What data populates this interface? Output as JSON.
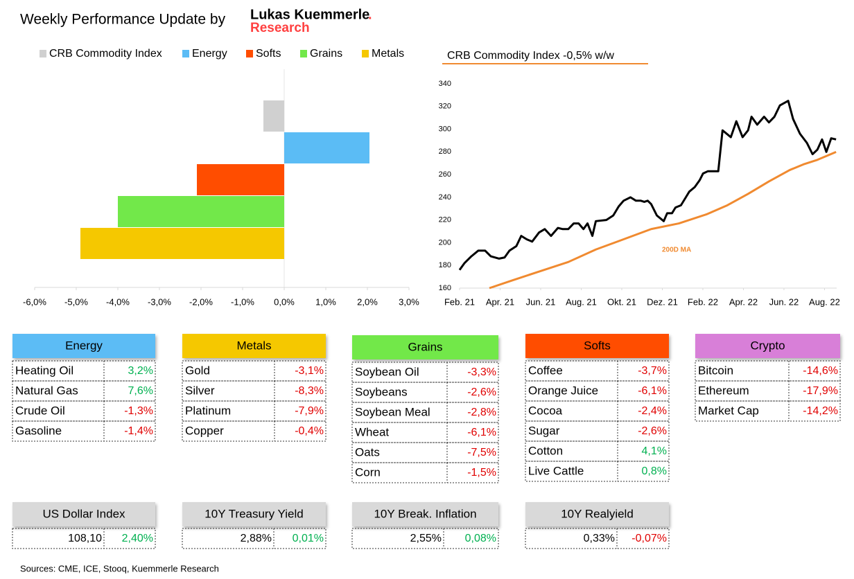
{
  "header": {
    "title": "Weekly Performance Update by",
    "brand": "Lukas Kuemmerle",
    "brand_dot": ".",
    "brand_sub": "Research"
  },
  "chart_data": [
    {
      "type": "hbar",
      "categories": [
        "CRB Commodity Index",
        "Energy",
        "Softs",
        "Grains",
        "Metals"
      ],
      "values": [
        -0.5,
        2.05,
        -2.1,
        -4.0,
        -4.9
      ],
      "colors": [
        "#d0d0d0",
        "#5bbcf5",
        "#ff4d00",
        "#72e84a",
        "#f5c800"
      ],
      "xlim": [
        -6,
        3
      ],
      "xticks": [
        {
          "value": -6,
          "label": "-6,0%"
        },
        {
          "value": -5,
          "label": "-5,0%"
        },
        {
          "value": -4,
          "label": "-4,0%"
        },
        {
          "value": -3,
          "label": "-3,0%"
        },
        {
          "value": -2,
          "label": "-2,0%"
        },
        {
          "value": -1,
          "label": "-1,0%"
        },
        {
          "value": 0,
          "label": "0,0%"
        },
        {
          "value": 1,
          "label": "1,0%"
        },
        {
          "value": 2,
          "label": "2,0%"
        },
        {
          "value": 3,
          "label": "3,0%"
        }
      ],
      "legend": "top"
    },
    {
      "type": "line",
      "title": "CRB Commodity Index -0,5% w/w",
      "series": [
        {
          "color": "#000000",
          "x": [
            0,
            0.24,
            0.58,
            0.92,
            1.26,
            1.54,
            1.95,
            2.22,
            2.46,
            2.8,
            3.04,
            3.31,
            3.58,
            3.92,
            4.2,
            4.51,
            4.85,
            5.09,
            5.36,
            5.63,
            5.87,
            6.11,
            6.31,
            6.55,
            6.72,
            7.24,
            7.58,
            7.85,
            8.09,
            8.43,
            8.7,
            8.94,
            9.11,
            9.28,
            9.45,
            9.73,
            10.07,
            10.24,
            10.48,
            10.65,
            10.92,
            11.16,
            11.33,
            11.6,
            11.84,
            12.01,
            12.25,
            12.76,
            12.97,
            13.38,
            13.65,
            13.96,
            14.23,
            14.4,
            14.68,
            15.02,
            15.26,
            15.53,
            15.8,
            16.21,
            16.45,
            16.79,
            17.13,
            17.41,
            17.65,
            17.88,
            18.09,
            18.33,
            18.57
          ],
          "values": [
            176,
            182,
            188,
            193,
            193,
            188,
            186,
            187,
            193,
            197,
            206,
            203,
            201,
            209,
            212,
            206,
            213,
            212,
            212,
            217,
            217,
            212,
            217,
            206,
            219,
            220,
            224,
            232,
            237,
            240,
            237,
            237,
            236,
            237,
            234,
            224,
            219,
            226,
            226,
            231,
            233,
            240,
            245,
            249,
            255,
            261,
            263,
            263,
            299,
            293,
            307,
            293,
            299,
            311,
            304,
            311,
            306,
            311,
            321,
            325,
            309,
            296,
            288,
            278,
            282,
            291,
            280,
            292,
            291
          ]
        },
        {
          "name": "200D MA",
          "color": "#f08a30",
          "x": [
            1.47,
            2.63,
            3.99,
            5.36,
            6.72,
            8.09,
            9.45,
            10.82,
            12.18,
            13.21,
            14.23,
            15.26,
            16.28,
            16.96,
            17.65,
            18.57
          ],
          "values": [
            160,
            167,
            175,
            183,
            194,
            203,
            212,
            217,
            225,
            233,
            243,
            254,
            264,
            269,
            273,
            280
          ]
        }
      ],
      "xlim": [
        0,
        18.6
      ],
      "xticks": [
        {
          "value": 0,
          "label": "Feb. 21"
        },
        {
          "value": 2,
          "label": "Apr. 21"
        },
        {
          "value": 4,
          "label": "Jun. 21"
        },
        {
          "value": 6,
          "label": "Aug. 21"
        },
        {
          "value": 8,
          "label": "Okt. 21"
        },
        {
          "value": 10,
          "label": "Dez. 21"
        },
        {
          "value": 12,
          "label": "Feb. 22"
        },
        {
          "value": 14,
          "label": "Apr. 22"
        },
        {
          "value": 16,
          "label": "Jun. 22"
        },
        {
          "value": 18,
          "label": "Aug. 22"
        }
      ],
      "ylim": [
        160,
        340
      ],
      "yticks": [
        160,
        180,
        200,
        220,
        240,
        260,
        280,
        300,
        320,
        340
      ]
    }
  ],
  "tables": [
    {
      "title": "Energy",
      "color": "#5bbcf5",
      "rows": [
        [
          "Heating Oil",
          "3,2%"
        ],
        [
          "Natural Gas",
          "7,6%"
        ],
        [
          "Crude Oil",
          "-1,3%"
        ],
        [
          "Gasoline",
          "-1,4%"
        ]
      ]
    },
    {
      "title": "Metals",
      "color": "#f5c800",
      "rows": [
        [
          "Gold",
          "-3,1%"
        ],
        [
          "Silver",
          "-8,3%"
        ],
        [
          "Platinum",
          "-7,9%"
        ],
        [
          "Copper",
          "-0,4%"
        ]
      ]
    },
    {
      "title": "Grains",
      "color": "#72e84a",
      "rows": [
        [
          "Soybean Oil",
          "-3,3%"
        ],
        [
          "Soybeans",
          "-2,6%"
        ],
        [
          "Soybean Meal",
          "-2,8%"
        ],
        [
          "Wheat",
          "-6,1%"
        ],
        [
          "Oats",
          "-7,5%"
        ],
        [
          "Corn",
          "-1,5%"
        ]
      ]
    },
    {
      "title": "Softs",
      "color": "#ff4d00",
      "rows": [
        [
          "Coffee",
          "-3,7%"
        ],
        [
          "Orange Juice",
          "-6,1%"
        ],
        [
          "Cocoa",
          "-2,4%"
        ],
        [
          "Sugar",
          "-2,6%"
        ],
        [
          "Cotton",
          "4,1%"
        ],
        [
          "Live Cattle",
          "0,8%"
        ]
      ]
    },
    {
      "title": "Crypto",
      "color": "#d87fd8",
      "rows": [
        [
          "Bitcoin",
          "-14,6%"
        ],
        [
          "Ethereum",
          "-17,9%"
        ],
        [
          "Market Cap",
          "-14,2%"
        ]
      ]
    }
  ],
  "indicators": [
    {
      "title": "US Dollar Index",
      "value": "108,10",
      "change": "2,40%"
    },
    {
      "title": "10Y Treasury Yield",
      "value": "2,88%",
      "change": "0,01%"
    },
    {
      "title": "10Y Break. Inflation",
      "value": "2,55%",
      "change": "0,08%"
    },
    {
      "title": "10Y Realyield",
      "value": "0,33%",
      "change": "-0,07%"
    }
  ],
  "footer": "Sources: CME, ICE, Stooq, Kuemmerle Research"
}
